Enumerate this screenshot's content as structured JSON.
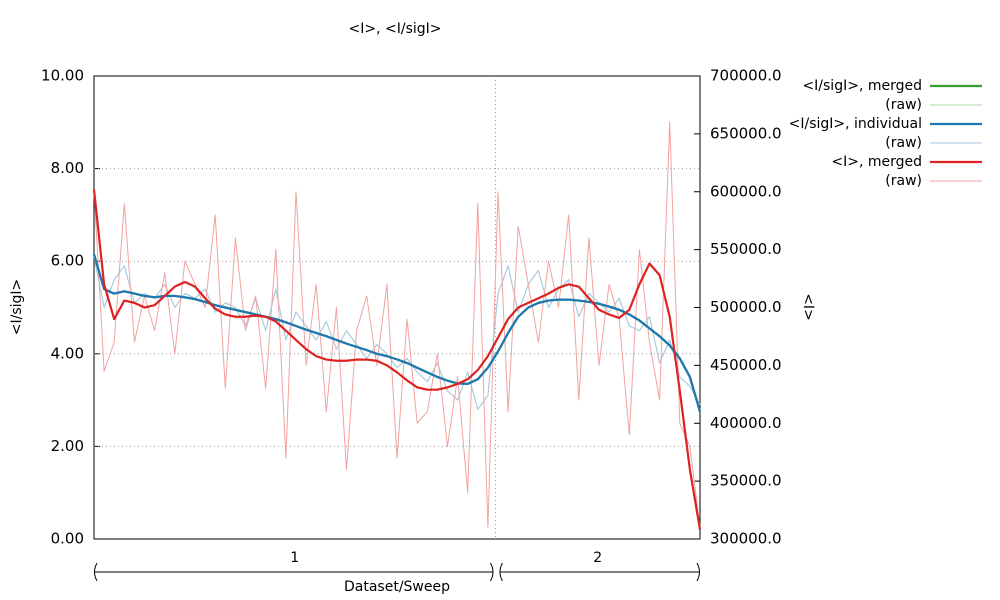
{
  "chart_data": {
    "type": "line",
    "title": "<I>, <I/sigI>",
    "ylabel": "<I/sigI>",
    "y2label": "<I>",
    "xlabel": "Dataset/Sweep",
    "xlim": [
      0,
      120
    ],
    "ylim": [
      0,
      10
    ],
    "yticks": [
      {
        "value": 0,
        "label": "0.00"
      },
      {
        "value": 2,
        "label": "2.00"
      },
      {
        "value": 4,
        "label": "4.00"
      },
      {
        "value": 6,
        "label": "6.00"
      },
      {
        "value": 8,
        "label": "8.00"
      },
      {
        "value": 10,
        "label": "10.00"
      }
    ],
    "y2lim": [
      300000,
      700000
    ],
    "y2ticks": [
      {
        "value": 300000,
        "label": "300000.0"
      },
      {
        "value": 350000,
        "label": "350000.0"
      },
      {
        "value": 400000,
        "label": "400000.0"
      },
      {
        "value": 450000,
        "label": "450000.0"
      },
      {
        "value": 500000,
        "label": "500000.0"
      },
      {
        "value": 550000,
        "label": "550000.0"
      },
      {
        "value": 600000,
        "label": "600000.0"
      },
      {
        "value": 650000,
        "label": "650000.0"
      },
      {
        "value": 700000,
        "label": "700000.0"
      }
    ],
    "grid": true,
    "legend": "right",
    "datasets": [
      {
        "label": "1",
        "range": [
          0,
          79.5
        ]
      },
      {
        "label": "2",
        "range": [
          79.5,
          120
        ]
      }
    ],
    "x": [
      0,
      2,
      4,
      6,
      8,
      10,
      12,
      14,
      16,
      18,
      20,
      22,
      24,
      26,
      28,
      30,
      32,
      34,
      36,
      38,
      40,
      42,
      44,
      46,
      48,
      50,
      52,
      54,
      56,
      58,
      60,
      62,
      64,
      66,
      68,
      70,
      72,
      74,
      76,
      78,
      80,
      82,
      84,
      86,
      88,
      90,
      92,
      94,
      96,
      98,
      100,
      102,
      104,
      106,
      108,
      110,
      112,
      114,
      116,
      118,
      120
    ],
    "series": [
      {
        "name": "<I/sigI>, merged",
        "color": "#37a030",
        "width": 2.2,
        "values": [
          6.15,
          5.4,
          5.3,
          5.35,
          5.3,
          5.25,
          5.22,
          5.25,
          5.25,
          5.22,
          5.18,
          5.12,
          5.05,
          5.0,
          4.95,
          4.9,
          4.85,
          4.8,
          4.75,
          4.68,
          4.6,
          4.52,
          4.45,
          4.38,
          4.3,
          4.22,
          4.15,
          4.08,
          4.0,
          3.95,
          3.88,
          3.8,
          3.7,
          3.6,
          3.5,
          3.42,
          3.36,
          3.35,
          3.45,
          3.7,
          4.05,
          4.45,
          4.8,
          5.0,
          5.1,
          5.15,
          5.17,
          5.17,
          5.15,
          5.12,
          5.08,
          5.02,
          4.95,
          4.85,
          4.72,
          4.55,
          4.38,
          4.18,
          3.9,
          3.5,
          2.75
        ]
      },
      {
        "name": "(raw)",
        "color": "#aedaa4",
        "width": 1,
        "values": [
          6.1,
          5.0,
          5.6,
          5.9,
          5.1,
          5.3,
          5.2,
          5.5,
          5.0,
          5.3,
          5.2,
          5.4,
          4.9,
          5.1,
          5.0,
          4.6,
          5.2,
          4.5,
          5.4,
          4.3,
          4.9,
          4.6,
          4.3,
          4.7,
          4.1,
          4.5,
          4.2,
          3.9,
          4.2,
          4.0,
          3.7,
          3.9,
          3.6,
          3.4,
          3.8,
          3.2,
          3.0,
          3.6,
          2.8,
          3.1,
          5.3,
          5.9,
          4.9,
          5.5,
          5.8,
          5.0,
          5.4,
          5.6,
          4.8,
          5.3,
          5.1,
          4.9,
          5.2,
          4.6,
          4.5,
          4.8,
          3.8,
          4.3,
          3.5,
          3.3,
          2.9
        ]
      },
      {
        "name": "<I/sigI>, individual",
        "color": "#1f77b4",
        "width": 2.2,
        "values": [
          6.15,
          5.4,
          5.3,
          5.35,
          5.3,
          5.25,
          5.22,
          5.25,
          5.25,
          5.22,
          5.18,
          5.12,
          5.05,
          5.0,
          4.95,
          4.9,
          4.85,
          4.8,
          4.75,
          4.68,
          4.6,
          4.52,
          4.45,
          4.38,
          4.3,
          4.22,
          4.15,
          4.08,
          4.0,
          3.95,
          3.88,
          3.8,
          3.7,
          3.6,
          3.5,
          3.42,
          3.36,
          3.35,
          3.45,
          3.7,
          4.05,
          4.45,
          4.8,
          5.0,
          5.1,
          5.15,
          5.17,
          5.17,
          5.15,
          5.12,
          5.08,
          5.02,
          4.95,
          4.85,
          4.72,
          4.55,
          4.38,
          4.18,
          3.9,
          3.5,
          2.75
        ]
      },
      {
        "name": "(raw)",
        "color": "#a6c8e8",
        "width": 1,
        "values": [
          6.1,
          5.0,
          5.6,
          5.9,
          5.1,
          5.3,
          5.2,
          5.5,
          5.0,
          5.3,
          5.2,
          5.4,
          4.9,
          5.1,
          5.0,
          4.6,
          5.2,
          4.5,
          5.4,
          4.3,
          4.9,
          4.6,
          4.3,
          4.7,
          4.1,
          4.5,
          4.2,
          3.9,
          4.2,
          4.0,
          3.7,
          3.9,
          3.6,
          3.4,
          3.8,
          3.2,
          3.0,
          3.6,
          2.8,
          3.1,
          5.3,
          5.9,
          4.9,
          5.5,
          5.8,
          5.0,
          5.4,
          5.6,
          4.8,
          5.3,
          5.1,
          4.9,
          5.2,
          4.6,
          4.5,
          4.8,
          3.8,
          4.3,
          3.5,
          3.3,
          2.9
        ]
      },
      {
        "name": "<I>, merged",
        "color": "#dd2222",
        "width": 2.2,
        "axis": "y2",
        "values": [
          602000,
          520000,
          490000,
          506000,
          504000,
          500000,
          502000,
          510000,
          518000,
          522000,
          518000,
          508000,
          499000,
          494000,
          492000,
          492000,
          493000,
          492000,
          488000,
          480000,
          472000,
          464000,
          458000,
          455000,
          454000,
          454000,
          455000,
          455000,
          454000,
          450000,
          444000,
          437000,
          431000,
          429000,
          429000,
          431000,
          434000,
          438000,
          446000,
          458000,
          474000,
          490000,
          500000,
          504000,
          508000,
          512000,
          517000,
          520000,
          518000,
          508000,
          498000,
          494000,
          491000,
          498000,
          520000,
          538000,
          528000,
          492000,
          428000,
          360000,
          308000
        ]
      },
      {
        "name": "(raw)",
        "color": "#f2a2a0",
        "width": 1,
        "axis": "y2",
        "values": [
          602000,
          445000,
          470000,
          590000,
          470000,
          510000,
          480000,
          530000,
          460000,
          540000,
          520000,
          500000,
          580000,
          430000,
          560000,
          480000,
          510000,
          430000,
          550000,
          370000,
          600000,
          450000,
          520000,
          410000,
          500000,
          360000,
          480000,
          510000,
          450000,
          520000,
          370000,
          490000,
          400000,
          410000,
          460000,
          380000,
          440000,
          340000,
          590000,
          310000,
          600000,
          410000,
          570000,
          520000,
          470000,
          540000,
          500000,
          580000,
          420000,
          560000,
          450000,
          520000,
          490000,
          390000,
          550000,
          470000,
          420000,
          660000,
          400000,
          380000,
          310000
        ]
      }
    ]
  }
}
